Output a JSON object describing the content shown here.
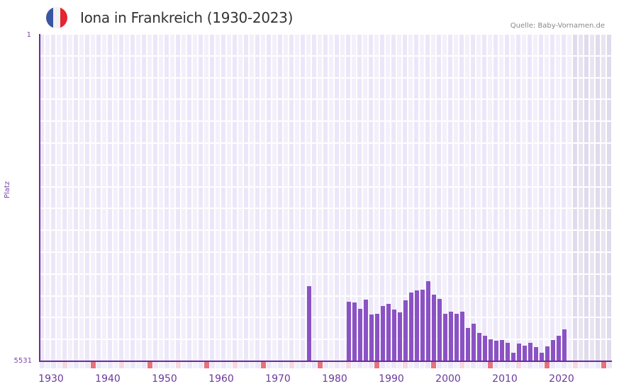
{
  "header": {
    "title": "Iona in Frankreich (1930-2023)",
    "source": "Quelle: Baby-Vornamen.de",
    "flag_colors": [
      "#3a55a4",
      "#f2f2f2",
      "#e3262f"
    ]
  },
  "axes": {
    "ylabel": "Platz",
    "ytop": "1",
    "ybottom": "5531",
    "xticks": [
      "1930",
      "1940",
      "1950",
      "1960",
      "1970",
      "1980",
      "1990",
      "2000",
      "2010",
      "2020"
    ]
  },
  "colors": {
    "bar": "#8b52c4",
    "axis": "#6a2c9a",
    "grid_light": "#f3f0fb",
    "grid_dark": "#ece7f8",
    "shade_light": "#e8e4f0",
    "shade_dark": "#e0dbec",
    "tick_major": "#e5737d",
    "tick_minor": "#f5d8e0"
  },
  "chart_data": {
    "type": "bar",
    "title": "Iona in Frankreich (1930-2023)",
    "xlabel": "",
    "ylabel": "Platz",
    "ylim": [
      5531,
      1
    ],
    "y_inverted": true,
    "grid": true,
    "source": "Quelle: Baby-Vornamen.de",
    "categories": [
      1976,
      1983,
      1984,
      1985,
      1986,
      1987,
      1988,
      1989,
      1990,
      1991,
      1992,
      1993,
      1994,
      1995,
      1996,
      1997,
      1998,
      1999,
      2000,
      2001,
      2002,
      2003,
      2004,
      2005,
      2006,
      2007,
      2008,
      2009,
      2010,
      2011,
      2012,
      2013,
      2014,
      2015,
      2016,
      2017,
      2018,
      2019,
      2020,
      2021
    ],
    "values": [
      4257,
      4521,
      4533,
      4641,
      4485,
      4738,
      4726,
      4593,
      4557,
      4653,
      4701,
      4497,
      4365,
      4329,
      4317,
      4173,
      4401,
      4473,
      4726,
      4689,
      4726,
      4689,
      4966,
      4894,
      5050,
      5098,
      5158,
      5182,
      5170,
      5218,
      5387,
      5230,
      5267,
      5218,
      5291,
      5387,
      5279,
      5170,
      5098,
      4990
    ]
  }
}
